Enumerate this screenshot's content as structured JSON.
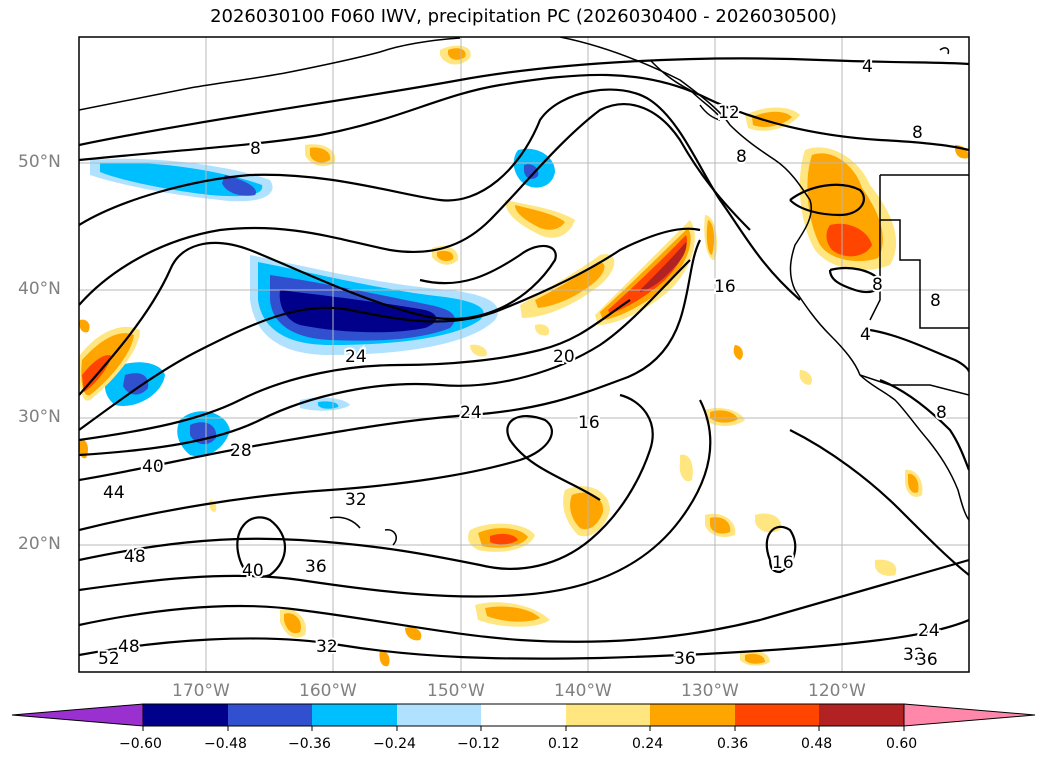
{
  "title": "2026030100 F060 IWV, precipitation PC (2026030400 - 2026030500)",
  "lat_labels": [
    "50°N",
    "40°N",
    "30°N",
    "20°N"
  ],
  "lon_labels": [
    "170°W",
    "160°W",
    "150°W",
    "140°W",
    "130°W",
    "120°W"
  ],
  "contour_labels": [
    "4",
    "8",
    "8",
    "12",
    "8",
    "8",
    "8",
    "4",
    "8",
    "16",
    "20",
    "24",
    "16",
    "24",
    "28",
    "40",
    "44",
    "32",
    "48",
    "40",
    "36",
    "16",
    "48",
    "32",
    "52",
    "36",
    "24",
    "32",
    "36"
  ],
  "colorbar": {
    "ticks": [
      "−0.60",
      "−0.48",
      "−0.36",
      "−0.24",
      "−0.12",
      "0.12",
      "0.24",
      "0.36",
      "0.48",
      "0.60"
    ],
    "colors": [
      "#9b30d0",
      "#00008b",
      "#3050d0",
      "#00bfff",
      "#b0e2ff",
      "#ffffff",
      "#ffe680",
      "#ffa500",
      "#ff4500",
      "#b22222",
      "#ff88aa"
    ]
  },
  "colors": {
    "neg_strong": "#00008b",
    "neg_mid": "#3050d0",
    "neg": "#00bfff",
    "neg_light": "#b0e2ff",
    "pos_light": "#ffe680",
    "pos": "#ffa500",
    "pos_mid": "#ff4500",
    "pos_strong": "#b22222"
  }
}
